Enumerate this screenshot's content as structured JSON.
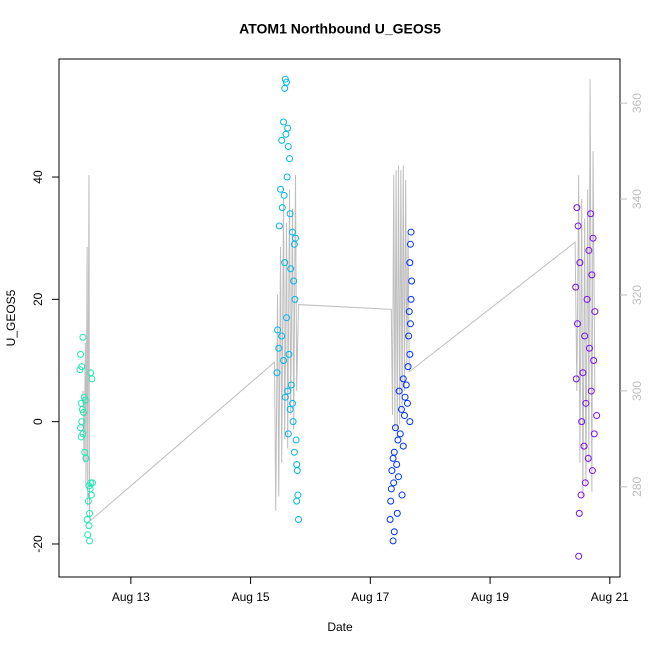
{
  "chart_data": {
    "type": "scatter",
    "title": "ATOM1 Northbound U_GEOS5",
    "x_label": "Date",
    "y_label": "U_GEOS5",
    "xlim": [
      11.8,
      21.17
    ],
    "xticks": [
      {
        "value": 13,
        "label": "Aug 13"
      },
      {
        "value": 15,
        "label": "Aug 15"
      },
      {
        "value": 17,
        "label": "Aug 17"
      },
      {
        "value": 19,
        "label": "Aug 19"
      },
      {
        "value": 21,
        "label": "Aug 21"
      }
    ],
    "ylim": [
      -25.4,
      59.3
    ],
    "yticks": [
      -20,
      0,
      20,
      40
    ],
    "y2lim": [
      261.2,
      369.2
    ],
    "y2ticks": [
      280,
      300,
      320,
      340,
      360
    ],
    "y2_tick_color": "#bfbfbf",
    "series": [
      {
        "color": "#1ee8b4",
        "x": [
          12.2,
          12.16,
          12.18,
          12.15,
          12.22,
          12.17,
          12.19,
          12.21,
          12.18,
          12.16,
          12.2,
          12.17,
          12.23,
          12.25,
          12.33,
          12.3,
          12.32,
          12.34,
          12.29,
          12.31,
          12.27,
          12.3,
          12.28,
          12.31,
          12.33,
          12.35,
          12.24,
          12.36
        ],
        "values": [
          13.8,
          11,
          9,
          8.5,
          4,
          3,
          2,
          1.5,
          0,
          -1,
          -2,
          -2.5,
          -5,
          -6,
          -10,
          -10.5,
          -11,
          -12,
          -13,
          -15,
          -16,
          -17,
          -18.5,
          -19.5,
          8,
          7,
          3.5,
          -10
        ]
      },
      {
        "color": "#00b7eb",
        "x": [
          15.58,
          15.6,
          15.57,
          15.55,
          15.62,
          15.59,
          15.52,
          15.63,
          15.65,
          15.61,
          15.5,
          15.56,
          15.53,
          15.66,
          15.48,
          15.7,
          15.75,
          15.73,
          15.57,
          15.67,
          15.72,
          15.74,
          15.6,
          15.45,
          15.52,
          15.47,
          15.64,
          15.55,
          15.44,
          15.68,
          15.62,
          15.58,
          15.7,
          15.66,
          15.71,
          15.63,
          15.76,
          15.73,
          15.77,
          15.78,
          15.79,
          15.77,
          15.8
        ],
        "values": [
          56,
          55.5,
          54.5,
          49,
          48,
          47,
          46,
          45,
          43,
          40,
          38,
          37,
          35,
          34,
          32,
          31,
          30,
          29,
          26,
          25,
          23,
          20,
          17,
          15,
          14,
          12,
          11,
          10,
          8,
          6,
          5,
          4,
          3,
          2,
          0,
          -2,
          -3,
          -5,
          -7,
          -8,
          -12,
          -13,
          -16
        ]
      },
      {
        "color": "#0033ff",
        "x": [
          17.68,
          17.67,
          17.66,
          17.69,
          17.68,
          17.65,
          17.67,
          17.64,
          17.66,
          17.63,
          17.55,
          17.6,
          17.48,
          17.58,
          17.62,
          17.52,
          17.57,
          17.66,
          17.42,
          17.5,
          17.46,
          17.55,
          17.4,
          17.38,
          17.44,
          17.36,
          17.47,
          17.39,
          17.35,
          17.53,
          17.34,
          17.45,
          17.33,
          17.4,
          17.38
        ],
        "values": [
          31,
          29,
          26,
          23,
          20,
          18,
          16,
          14,
          11,
          9,
          7,
          6,
          5,
          4,
          3,
          2,
          1,
          0,
          -1,
          -2,
          -3,
          -4,
          -5,
          -6,
          -7,
          -8,
          -9,
          -10,
          -11,
          -12,
          -13,
          -15,
          -16,
          -18,
          -19.5
        ]
      },
      {
        "color": "#7a10f0",
        "x": [
          20.45,
          20.68,
          20.47,
          20.72,
          20.65,
          20.5,
          20.7,
          20.43,
          20.62,
          20.75,
          20.46,
          20.58,
          20.66,
          20.73,
          20.55,
          20.44,
          20.69,
          20.6,
          20.78,
          20.53,
          20.74,
          20.57,
          20.64,
          20.71,
          20.59,
          20.52,
          20.49,
          20.48
        ],
        "values": [
          35,
          34,
          32,
          30,
          28,
          26,
          24,
          22,
          20,
          18,
          16,
          14,
          12,
          10,
          8,
          7,
          5,
          3,
          1,
          0,
          -2,
          -4,
          -6,
          -8,
          -10,
          -12,
          -15,
          -22
        ]
      },
      {
        "color": "#bebebe",
        "mode": "line",
        "axis": "y2",
        "x": [
          12.2,
          12.22,
          12.24,
          12.25,
          12.27,
          12.28,
          12.3,
          12.31,
          12.33,
          15.4,
          15.42,
          15.45,
          15.47,
          15.5,
          15.52,
          15.55,
          15.57,
          15.6,
          15.62,
          15.65,
          15.67,
          15.7,
          15.72,
          15.75,
          15.77,
          15.8,
          17.35,
          17.37,
          17.39,
          17.41,
          17.43,
          17.45,
          17.47,
          17.49,
          17.51,
          17.53,
          17.55,
          17.57,
          17.59,
          17.61,
          17.63,
          17.65,
          20.42,
          20.45,
          20.48,
          20.5,
          20.53,
          20.55,
          20.58,
          20.6,
          20.63,
          20.65,
          20.67,
          20.7,
          20.72,
          20.75
        ],
        "values": [
          300,
          285,
          310,
          280,
          330,
          276,
          345,
          274,
          273,
          306,
          275,
          320,
          278,
          330,
          285,
          340,
          290,
          335,
          288,
          342,
          295,
          338,
          292,
          345,
          300,
          318,
          317,
          295,
          345,
          292,
          346,
          290,
          347,
          293,
          346,
          296,
          347,
          300,
          344,
          305,
          333,
          304,
          331,
          300,
          345,
          285,
          340,
          278,
          336,
          280,
          342,
          285,
          365,
          279,
          350,
          300
        ]
      }
    ]
  }
}
